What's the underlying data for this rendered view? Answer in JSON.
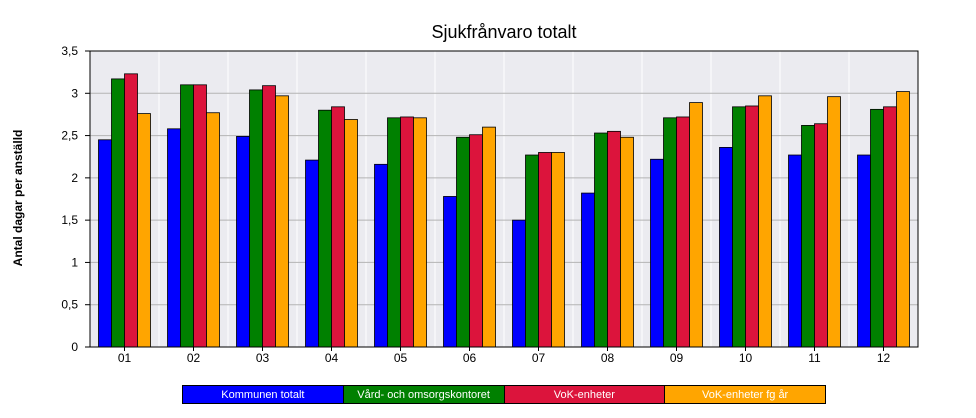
{
  "chart_data": {
    "type": "bar",
    "title": "Sjukfrånvaro totalt",
    "xlabel": "",
    "ylabel": "Antal dagar per anställd",
    "ylim": [
      0,
      3.5
    ],
    "yticks": [
      "0",
      "0,5",
      "1",
      "1,5",
      "2",
      "2,5",
      "3",
      "3,5"
    ],
    "grid": true,
    "legend_position": "bottom",
    "categories": [
      "01",
      "02",
      "03",
      "04",
      "05",
      "06",
      "07",
      "08",
      "09",
      "10",
      "11",
      "12"
    ],
    "series": [
      {
        "name": "Kommunen totalt",
        "color": "#0000ff",
        "values": [
          2.45,
          2.58,
          2.49,
          2.21,
          2.16,
          1.78,
          1.5,
          1.82,
          2.22,
          2.36,
          2.27,
          2.27
        ]
      },
      {
        "name": "Vård- och omsorgskontoret",
        "color": "#008000",
        "values": [
          3.17,
          3.1,
          3.04,
          2.8,
          2.71,
          2.48,
          2.27,
          2.53,
          2.71,
          2.84,
          2.62,
          2.81
        ]
      },
      {
        "name": "VoK-enheter",
        "color": "#dc143c",
        "values": [
          3.23,
          3.1,
          3.09,
          2.84,
          2.72,
          2.51,
          2.3,
          2.55,
          2.72,
          2.85,
          2.64,
          2.84
        ]
      },
      {
        "name": "VoK-enheter fg år",
        "color": "#ffa500",
        "values": [
          2.76,
          2.77,
          2.97,
          2.69,
          2.71,
          2.6,
          2.3,
          2.48,
          2.89,
          2.97,
          2.96,
          3.02
        ]
      }
    ]
  }
}
